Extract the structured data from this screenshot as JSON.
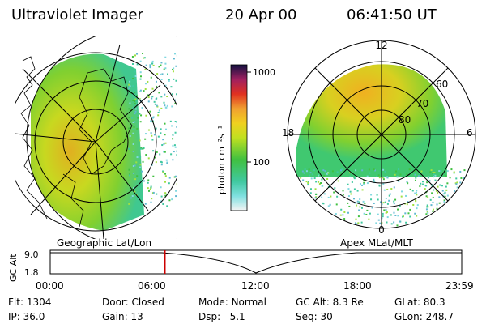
{
  "header": {
    "instrument": "Ultraviolet Imager",
    "date": "20 Apr 00",
    "time": "06:41:50 UT"
  },
  "colorbar": {
    "unit_label": "photon cm⁻²s⁻¹",
    "ticks": [
      "1000",
      "100"
    ]
  },
  "geo_panel": {
    "caption": "Geographic Lat/Lon"
  },
  "apex_panel": {
    "caption": "Apex MLat/MLT",
    "mlt_labels": [
      "12",
      "18",
      "6",
      "0"
    ],
    "mlat_labels": [
      "60",
      "70",
      "80"
    ]
  },
  "altitude_plot": {
    "ylabel": "GC Alt",
    "y_ticks": [
      "9.0",
      "1.8"
    ],
    "x_ticks": [
      "00:00",
      "06:00",
      "12:00",
      "18:00",
      "23:59"
    ],
    "current_time_fraction": 0.279,
    "marker_color": "#cc0000"
  },
  "status": {
    "row1": [
      {
        "label": "Flt:",
        "value": "1304"
      },
      {
        "label": "Door:",
        "value": "Closed"
      },
      {
        "label": "Mode:",
        "value": "Normal"
      },
      {
        "label": "GC Alt:",
        "value": "8.3 Re"
      },
      {
        "label": "GLat:",
        "value": "80.3"
      }
    ],
    "row2": [
      {
        "label": "IP:",
        "value": "36.0"
      },
      {
        "label": "Gain:",
        "value": "13"
      },
      {
        "label": "Dsp:",
        "value": "5.1"
      },
      {
        "label": "Seq:",
        "value": "30"
      },
      {
        "label": "GLon:",
        "value": "248.7"
      }
    ]
  }
}
